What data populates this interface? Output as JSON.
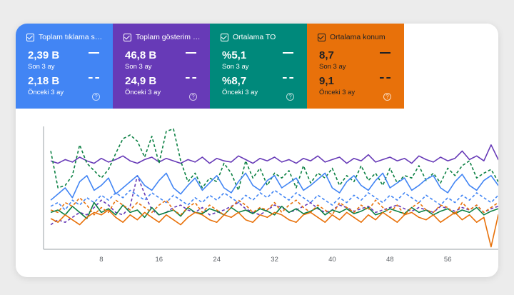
{
  "metrics": [
    {
      "title": "Toplam tıklama s…",
      "value": "2,39 B",
      "value_label": "Son 3 ay",
      "prev_value": "2,18 B",
      "prev_label": "Önceki 3 ay",
      "color": "#4285f4"
    },
    {
      "title": "Toplam gösterim …",
      "value": "46,8 B",
      "value_label": "Son 3 ay",
      "prev_value": "24,9 B",
      "prev_label": "Önceki 3 ay",
      "color": "#673ab7"
    },
    {
      "title": "Ortalama TO",
      "value": "%5,1",
      "value_label": "Son 3 ay",
      "prev_value": "%8,7",
      "prev_label": "Önceki 3 ay",
      "color": "#00897b"
    },
    {
      "title": "Ortalama konum",
      "value": "8,7",
      "value_label": "Son 3 ay",
      "prev_value": "9,1",
      "prev_label": "Önceki 3 ay",
      "color": "#e8710a"
    }
  ],
  "help_icon": "?",
  "chart_data": {
    "type": "line",
    "x_ticks": [
      8,
      16,
      24,
      32,
      40,
      48,
      56
    ],
    "xlim": [
      0,
      63
    ],
    "ylim": [
      0,
      100
    ],
    "series": [
      {
        "color": "#673ab7",
        "dashed": false,
        "values": [
          72,
          70,
          73,
          71,
          75,
          72,
          70,
          74,
          71,
          73,
          76,
          72,
          70,
          73,
          75,
          71,
          74,
          72,
          70,
          73,
          71,
          75,
          70,
          74,
          72,
          71,
          76,
          73,
          70,
          74,
          72,
          75,
          71,
          73,
          70,
          74,
          72,
          76,
          71,
          73,
          75,
          70,
          74,
          72,
          77,
          71,
          73,
          75,
          72,
          74,
          70,
          76,
          73,
          71,
          75,
          72,
          74,
          80,
          73,
          76,
          72,
          85,
          73,
          75
        ]
      },
      {
        "color": "#673ab7",
        "dashed": true,
        "values": [
          20,
          24,
          22,
          26,
          30,
          28,
          34,
          40,
          36,
          30,
          28,
          35,
          60,
          45,
          32,
          28,
          30,
          34,
          36,
          32,
          30,
          34,
          28,
          30,
          32,
          35,
          38,
          33,
          30,
          28,
          32,
          36,
          34,
          30,
          32,
          35,
          38,
          33,
          30,
          32,
          36,
          34,
          31,
          33,
          35,
          30,
          32,
          34,
          36,
          33,
          31,
          34,
          32,
          30,
          35,
          33,
          31,
          34,
          32,
          36,
          30,
          33,
          35,
          32
        ]
      },
      {
        "color": "#0b8043",
        "dashed": true,
        "values": [
          80,
          50,
          52,
          60,
          85,
          70,
          64,
          58,
          65,
          78,
          90,
          93,
          88,
          75,
          92,
          70,
          96,
          98,
          72,
          55,
          62,
          50,
          58,
          55,
          70,
          62,
          48,
          72,
          58,
          66,
          52,
          62,
          58,
          64,
          50,
          68,
          54,
          62,
          58,
          66,
          52,
          60,
          55,
          68,
          56,
          62,
          52,
          66,
          54,
          60,
          58,
          68,
          56,
          62,
          54,
          66,
          60,
          68,
          72,
          58,
          62,
          65,
          55,
          70
        ]
      },
      {
        "color": "#0b8043",
        "dashed": false,
        "values": [
          30,
          32,
          28,
          35,
          30,
          25,
          38,
          30,
          33,
          28,
          36,
          30,
          32,
          26,
          34,
          28,
          30,
          32,
          27,
          34,
          30,
          29,
          33,
          31,
          28,
          34,
          30,
          32,
          29,
          33,
          31,
          28,
          35,
          30,
          33,
          29,
          31,
          34,
          28,
          32,
          30,
          33,
          29,
          31,
          34,
          28,
          30,
          33,
          31,
          29,
          34,
          30,
          32,
          28,
          31,
          33,
          29,
          32,
          30,
          34,
          28,
          31,
          33,
          30
        ]
      },
      {
        "color": "#4285f4",
        "dashed": false,
        "values": [
          40,
          45,
          50,
          42,
          55,
          60,
          48,
          52,
          58,
          45,
          50,
          55,
          60,
          52,
          48,
          56,
          62,
          50,
          45,
          52,
          58,
          48,
          54,
          60,
          50,
          46,
          55,
          62,
          52,
          48,
          56,
          60,
          50,
          54,
          58,
          48,
          52,
          57,
          62,
          50,
          46,
          55,
          60,
          52,
          48,
          56,
          62,
          50,
          54,
          58,
          48,
          52,
          57,
          60,
          50,
          46,
          55,
          61,
          52,
          48,
          56,
          60,
          52,
          55
        ]
      },
      {
        "color": "#4285f4",
        "dashed": true,
        "values": [
          35,
          38,
          32,
          40,
          36,
          42,
          38,
          44,
          40,
          46,
          42,
          48,
          44,
          40,
          46,
          42,
          38,
          44,
          40,
          36,
          42,
          38,
          44,
          40,
          46,
          42,
          38,
          44,
          40,
          46,
          42,
          48,
          44,
          40,
          46,
          42,
          38,
          44,
          40,
          36,
          42,
          38,
          44,
          40,
          46,
          42,
          38,
          44,
          40,
          46,
          42,
          38,
          44,
          40,
          36,
          42,
          38,
          44,
          40,
          46,
          42,
          38,
          44,
          40
        ]
      },
      {
        "color": "#e8710a",
        "dashed": false,
        "values": [
          25,
          22,
          28,
          24,
          20,
          26,
          30,
          28,
          32,
          26,
          22,
          28,
          24,
          30,
          26,
          22,
          28,
          24,
          20,
          26,
          30,
          28,
          24,
          22,
          28,
          26,
          30,
          24,
          22,
          28,
          26,
          30,
          28,
          24,
          22,
          28,
          30,
          26,
          22,
          28,
          24,
          30,
          26,
          22,
          28,
          24,
          30,
          26,
          22,
          28,
          30,
          26,
          24,
          28,
          22,
          26,
          30,
          24,
          28,
          22,
          26,
          2,
          28,
          24
        ]
      },
      {
        "color": "#e8710a",
        "dashed": true,
        "values": [
          32,
          30,
          38,
          35,
          42,
          36,
          28,
          34,
          30,
          40,
          36,
          32,
          38,
          34,
          30,
          36,
          40,
          32,
          28,
          34,
          38,
          30,
          36,
          32,
          28,
          34,
          40,
          36,
          30,
          34,
          32,
          38,
          30,
          36,
          40,
          34,
          30,
          36,
          32,
          28,
          38,
          34,
          30,
          36,
          32,
          40,
          34,
          30,
          36,
          28,
          34,
          38,
          32,
          30,
          36,
          34,
          28,
          38,
          32,
          36,
          30,
          34,
          38,
          32
        ]
      }
    ]
  }
}
